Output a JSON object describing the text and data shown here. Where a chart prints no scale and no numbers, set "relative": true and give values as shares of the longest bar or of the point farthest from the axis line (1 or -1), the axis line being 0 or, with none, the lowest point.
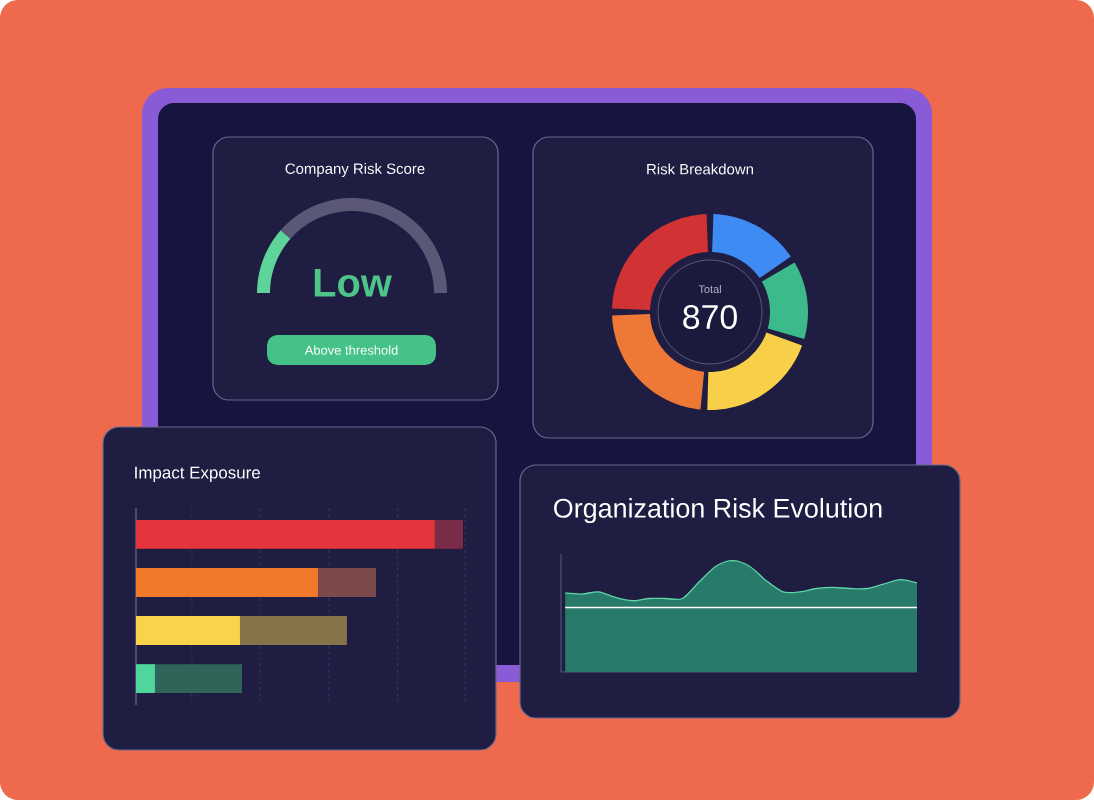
{
  "chart_data": [
    {
      "type": "donut",
      "title": "Company Risk Score",
      "categories": [
        null,
        null
      ],
      "colors": [
        "#5ED39A",
        "#5B5877"
      ],
      "values": [
        23,
        77
      ],
      "annotations": [
        "Low",
        "Above threshold"
      ]
    },
    {
      "type": "donut",
      "title": "Risk Breakdown",
      "categories": [
        null,
        null,
        null,
        null,
        null
      ],
      "colors": [
        "#3F8BF4",
        "#3DBA8C",
        "#F8CF48",
        "#EE7835",
        "#D13234"
      ],
      "values": [
        16,
        14,
        21,
        24,
        25
      ],
      "annotations": [
        "Total",
        "870"
      ]
    },
    {
      "type": "bar",
      "orientation": "horizontal",
      "stacked": true,
      "relative": true,
      "title": "Impact Exposure",
      "categories": [
        null,
        null,
        null,
        null
      ],
      "grid": "x",
      "series": [
        {
          "colors": [
            "#E5343D",
            "#F07A2A",
            "#F8D34B",
            "#4FD69C"
          ],
          "values": [
            0.914,
            0.557,
            0.318,
            0.058
          ]
        },
        {
          "colors": [
            "#7A2B47",
            "#7D4A4C",
            "#857548",
            "#2F6559"
          ],
          "values": [
            0.086,
            0.177,
            0.327,
            0.266
          ]
        }
      ]
    },
    {
      "type": "area",
      "relative": true,
      "title": "Organization Risk Evolution",
      "color": "#287A6B",
      "categories": [
        null,
        null,
        null,
        null,
        null,
        null,
        null,
        null,
        null,
        null,
        null,
        null,
        null,
        null,
        null,
        null,
        null,
        null,
        null,
        null,
        null,
        null
      ],
      "values": [
        0.71,
        0.7,
        0.72,
        0.67,
        0.64,
        0.66,
        0.66,
        0.66,
        0.81,
        0.95,
        1,
        0.95,
        0.82,
        0.72,
        0.72,
        0.75,
        0.76,
        0.75,
        0.75,
        0.79,
        0.83,
        0.8
      ],
      "ref_lines": [
        {
          "axis": "y",
          "value": 0.58,
          "color": "#ffffff"
        }
      ]
    }
  ]
}
